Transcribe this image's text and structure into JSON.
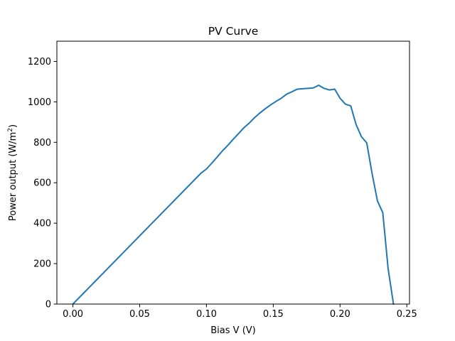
{
  "chart_data": {
    "type": "line",
    "title": "PV Curve",
    "xlabel": "Bias V (V)",
    "ylabel_text": "Power output (W/m",
    "ylabel_superscript": "2",
    "ylabel_suffix": ")",
    "xlim": [
      -0.012,
      0.252
    ],
    "ylim": [
      0,
      1300
    ],
    "xticks": [
      0.0,
      0.05,
      0.1,
      0.15,
      0.2,
      0.25
    ],
    "xtick_labels": [
      "0.00",
      "0.05",
      "0.10",
      "0.15",
      "0.20",
      "0.25"
    ],
    "yticks": [
      0,
      200,
      400,
      600,
      800,
      1000,
      1200
    ],
    "ytick_labels": [
      "0",
      "200",
      "400",
      "600",
      "800",
      "1000",
      "1200"
    ],
    "grid": false,
    "series": [
      {
        "color": "#1f77b4",
        "x": [
          0.0,
          0.004,
          0.008,
          0.012,
          0.016,
          0.02,
          0.024,
          0.028,
          0.032,
          0.036,
          0.04,
          0.044,
          0.048,
          0.052,
          0.056,
          0.06,
          0.064,
          0.068,
          0.072,
          0.076,
          0.08,
          0.084,
          0.088,
          0.092,
          0.096,
          0.1,
          0.104,
          0.108,
          0.112,
          0.116,
          0.12,
          0.124,
          0.128,
          0.132,
          0.136,
          0.14,
          0.144,
          0.148,
          0.152,
          0.156,
          0.16,
          0.164,
          0.168,
          0.172,
          0.176,
          0.18,
          0.184,
          0.188,
          0.192,
          0.196,
          0.2,
          0.204,
          0.208,
          0.212,
          0.216,
          0.22,
          0.224,
          0.228,
          0.232,
          0.236,
          0.24
        ],
        "y": [
          0,
          27,
          54,
          81,
          108,
          135,
          162,
          189,
          216,
          243,
          270,
          297,
          324,
          351,
          378,
          405,
          432,
          459,
          486,
          513,
          540,
          567,
          594,
          621,
          648,
          668,
          697,
          727,
          758,
          785,
          815,
          843,
          872,
          895,
          922,
          945,
          966,
          985,
          1002,
          1018,
          1038,
          1050,
          1063,
          1065,
          1067,
          1069,
          1082,
          1067,
          1059,
          1063,
          1018,
          989,
          980,
          888,
          828,
          797,
          645,
          510,
          452,
          175,
          0
        ]
      }
    ]
  }
}
